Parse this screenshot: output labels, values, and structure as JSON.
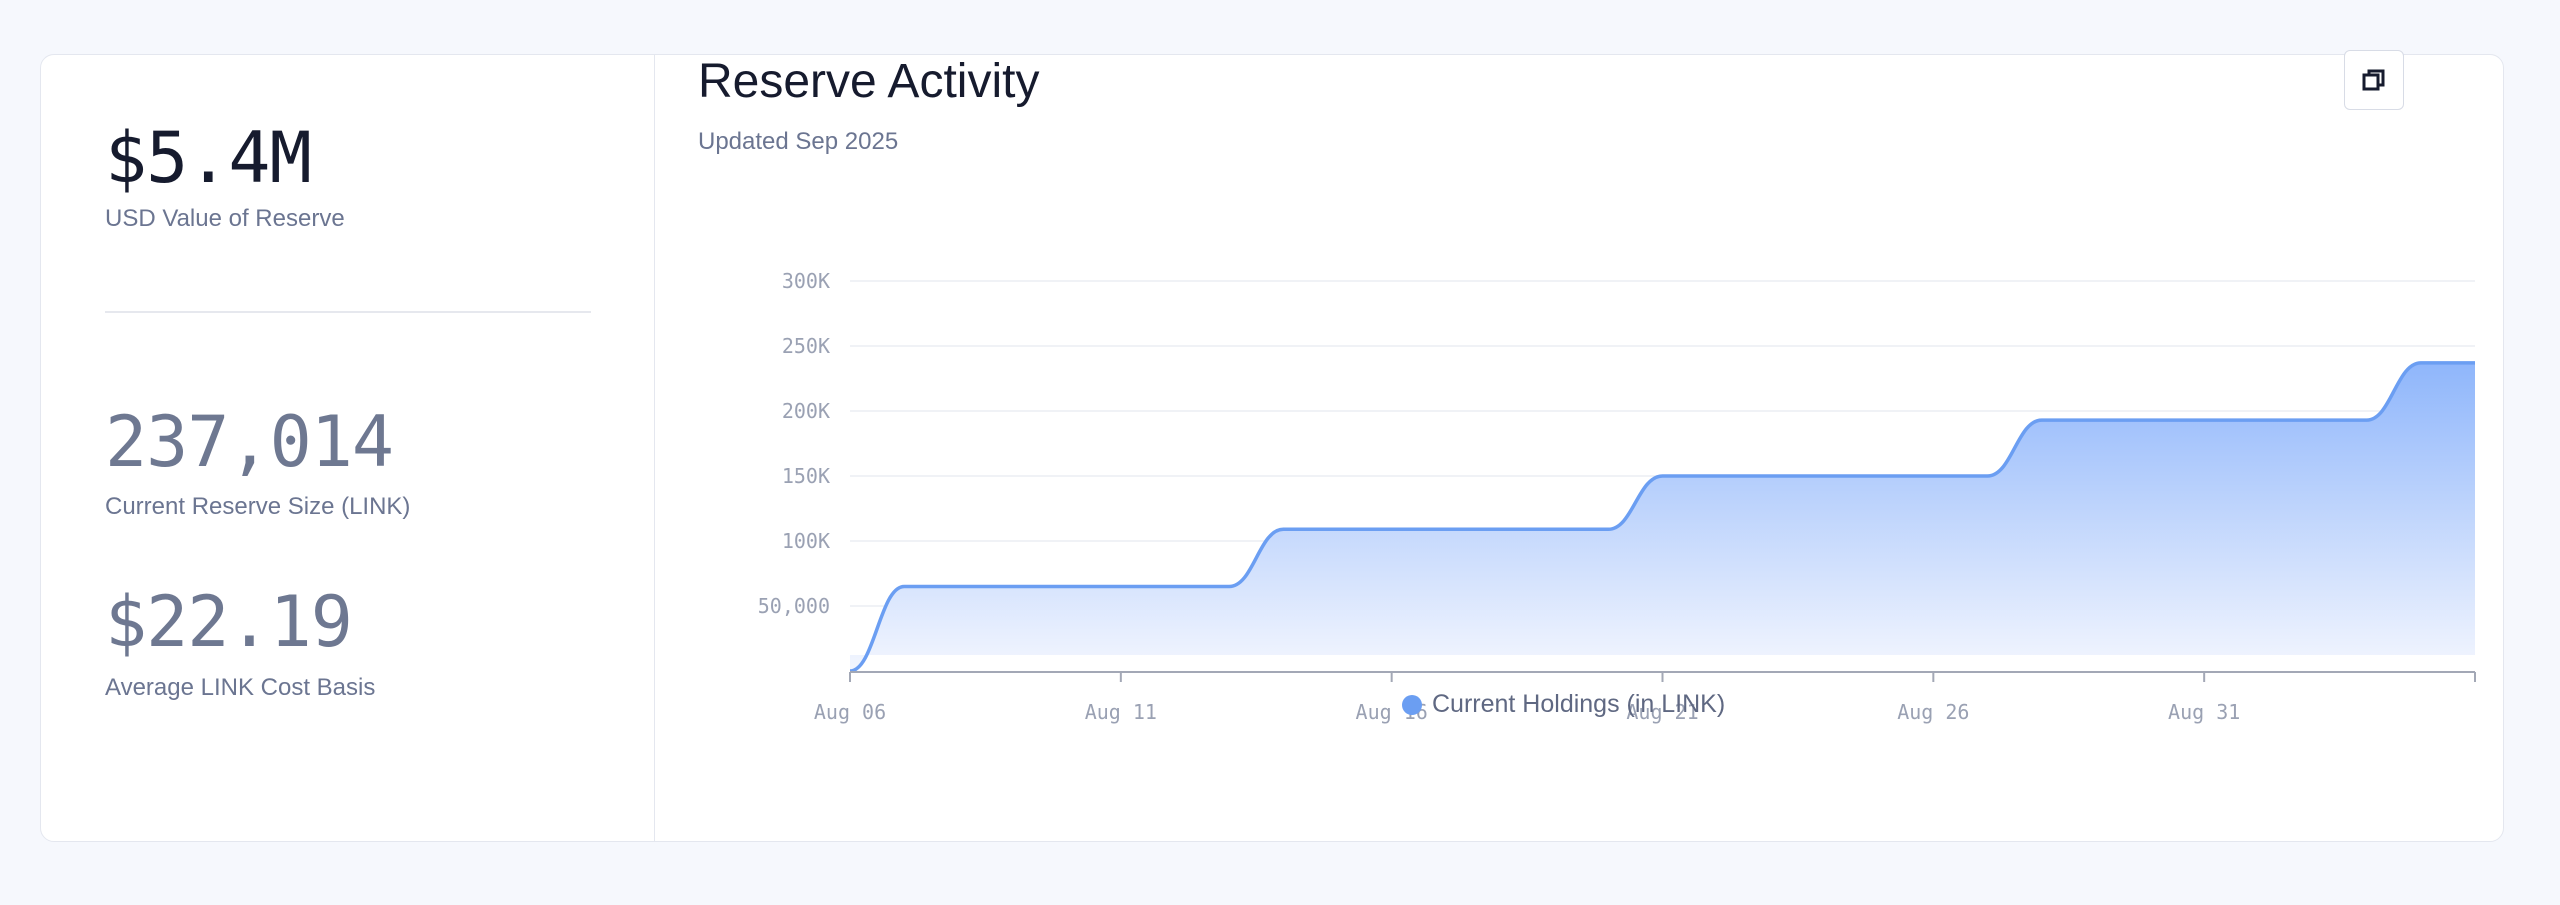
{
  "stats": {
    "usd_value": "$5.4M",
    "usd_label": "USD Value of Reserve",
    "reserve_size": "237,014",
    "reserve_label": "Current Reserve Size (LINK)",
    "cost_basis": "$22.19",
    "cost_basis_label": "Average LINK Cost Basis"
  },
  "chart_header": {
    "title": "Reserve Activity",
    "subtitle": "Updated Sep 2025",
    "expand_icon": "expand-icon"
  },
  "colors": {
    "series_line": "#6b9ef2",
    "area_top": "#8fb6fb",
    "area_bottom": "#f3f6fe",
    "grid": "#eceef3",
    "axis": "#a3a8b6"
  },
  "chart_data": {
    "type": "area",
    "title": "Reserve Activity",
    "xlabel": "",
    "ylabel": "",
    "x_ticks": [
      "Aug 06",
      "Aug 11",
      "Aug 16",
      "Aug 21",
      "Aug 26",
      "Aug 31"
    ],
    "y_ticks": [
      "50,000",
      "100K",
      "150K",
      "200K",
      "250K",
      "300K"
    ],
    "y_tick_values": [
      50000,
      100000,
      150000,
      200000,
      250000,
      300000
    ],
    "xlim": [
      "Aug 06",
      "Sep 05"
    ],
    "ylim": [
      0,
      300000
    ],
    "grid": true,
    "legend_position": "bottom",
    "series": [
      {
        "name": "Current Holdings (in LINK)",
        "points": [
          {
            "x": "Aug 06",
            "y": 0
          },
          {
            "x": "Aug 07",
            "y": 65000
          },
          {
            "x": "Aug 13",
            "y": 65000
          },
          {
            "x": "Aug 14",
            "y": 109000
          },
          {
            "x": "Aug 20",
            "y": 109000
          },
          {
            "x": "Aug 21",
            "y": 150000
          },
          {
            "x": "Aug 27",
            "y": 150000
          },
          {
            "x": "Aug 28",
            "y": 193000
          },
          {
            "x": "Sep 03",
            "y": 193000
          },
          {
            "x": "Sep 04",
            "y": 237014
          },
          {
            "x": "Sep 05",
            "y": 237014
          }
        ]
      }
    ]
  }
}
